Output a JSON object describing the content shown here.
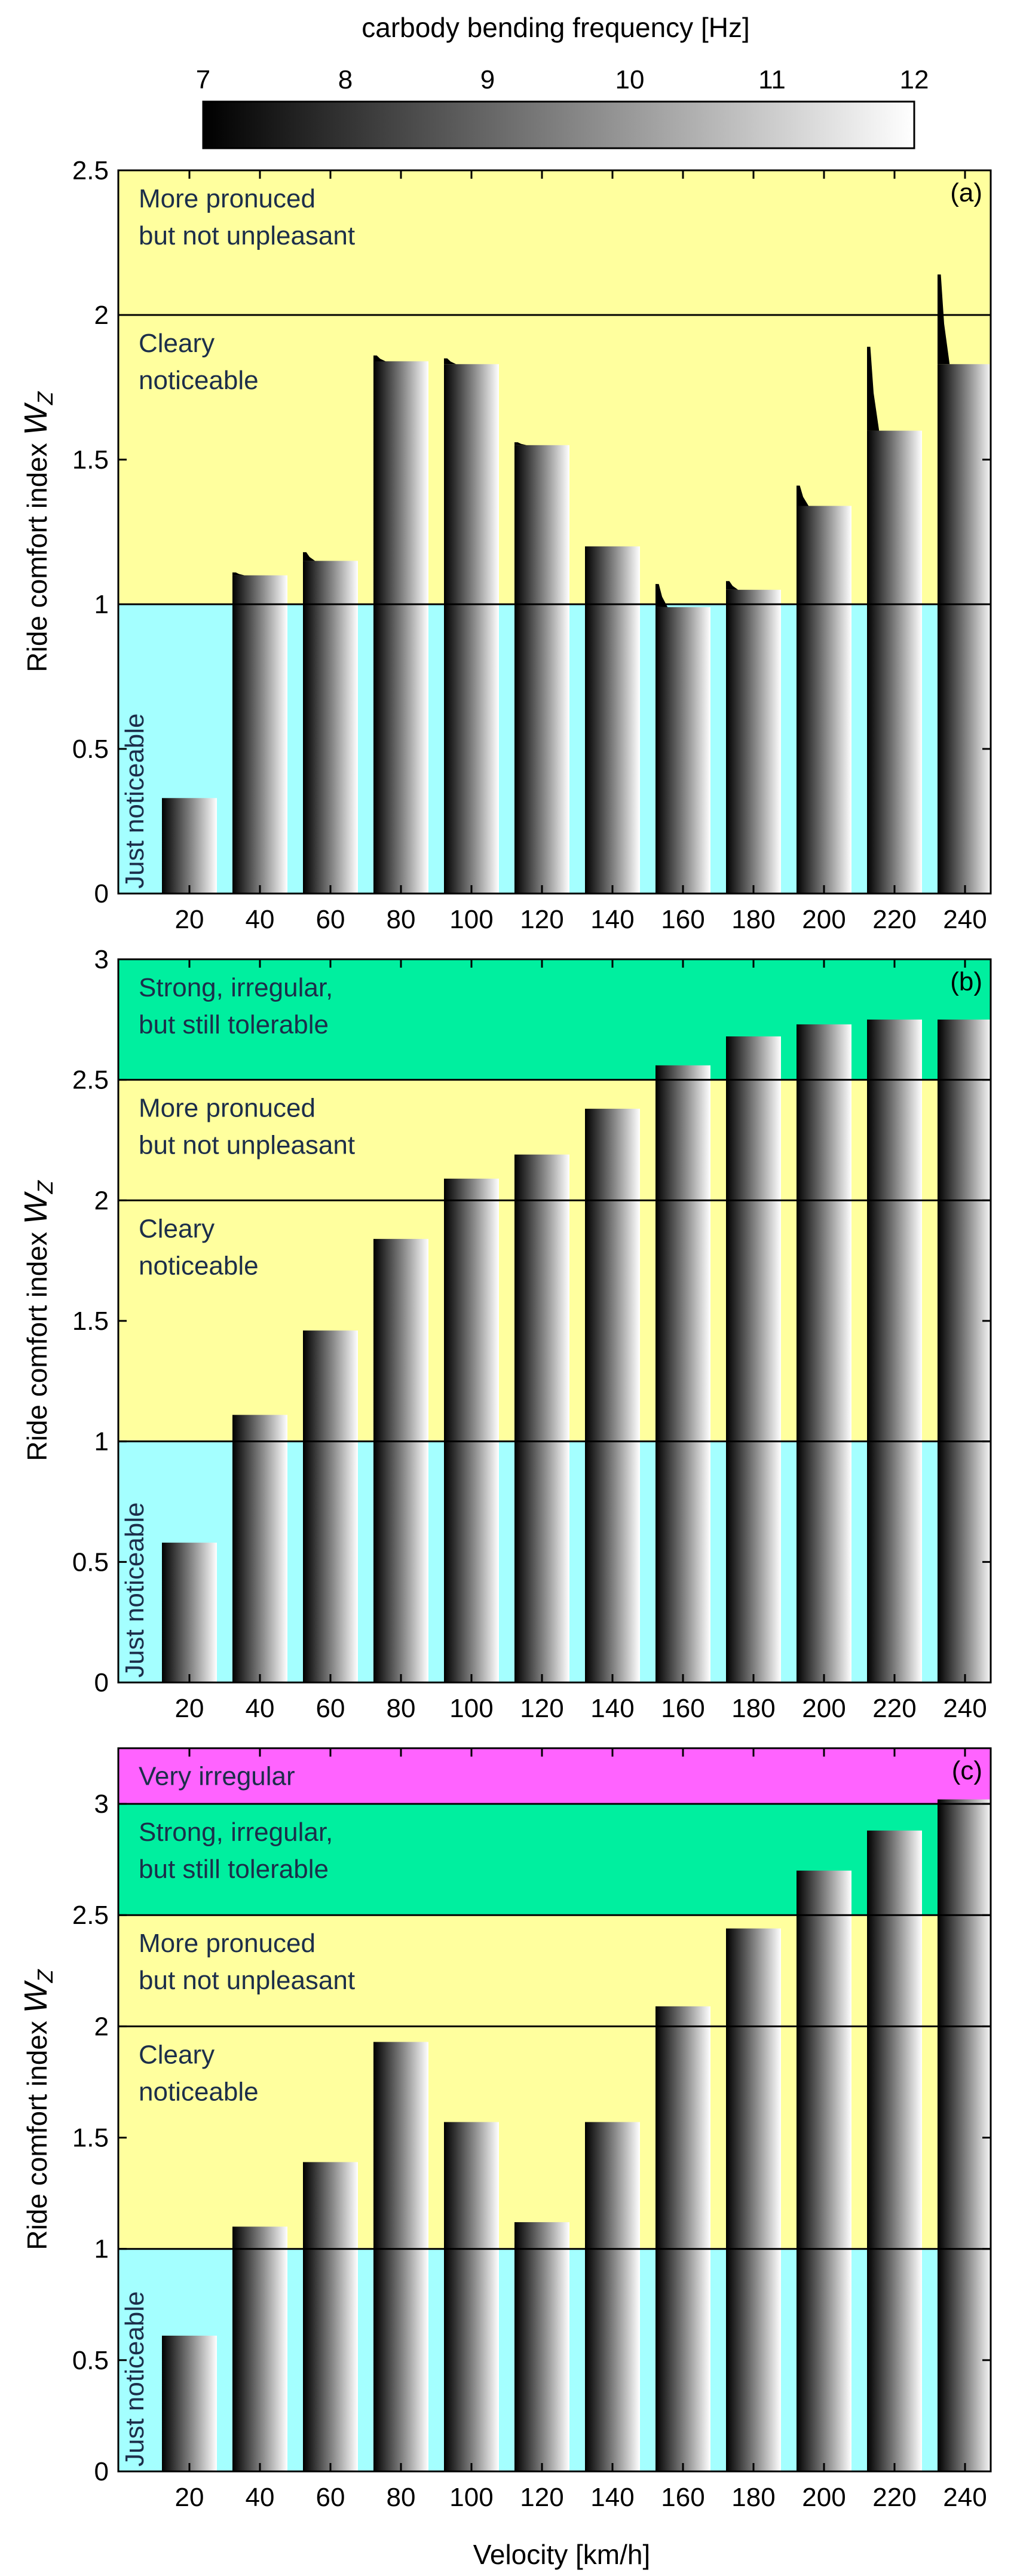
{
  "colorbar": {
    "title": "carbody bending frequency [Hz]",
    "ticks": [
      7,
      8,
      9,
      10,
      11,
      12
    ],
    "range": [
      7,
      12
    ],
    "color_low": "#000000",
    "color_high": "#ffffff"
  },
  "xlabel": "Velocity [km/h]",
  "ylabel_text": "Ride comfort index ",
  "ylabel_symbol": "W",
  "ylabel_subscript": "Z",
  "band_colors": {
    "just_noticeable": "#a4ffff",
    "clearly_noticeable": "#ffff9e",
    "more_pronounced": "#ffff9e",
    "strong": "#00ef9f",
    "very_irregular": "#ff63ff"
  },
  "chart_data": [
    {
      "type": "bar",
      "panel": "(a)",
      "categories": [
        "20",
        "40",
        "60",
        "80",
        "100",
        "120",
        "140",
        "160",
        "180",
        "200",
        "220",
        "240"
      ],
      "values": [
        0.33,
        1.1,
        1.15,
        1.84,
        1.83,
        1.55,
        1.2,
        0.99,
        1.05,
        1.34,
        1.6,
        1.83
      ],
      "peaks": [
        0.33,
        1.11,
        1.18,
        1.86,
        1.85,
        1.56,
        1.2,
        1.07,
        1.08,
        1.41,
        1.89,
        2.14
      ],
      "ylim": [
        0,
        2.5
      ],
      "yticks": [
        0,
        0.5,
        1,
        1.5,
        2,
        2.5
      ],
      "bands": [
        {
          "from": 0,
          "to": 1,
          "color_key": "just_noticeable",
          "label": [
            "Just noticeable"
          ],
          "vertical": true
        },
        {
          "from": 1,
          "to": 2,
          "color_key": "clearly_noticeable",
          "label": [
            "Cleary",
            "noticeable"
          ]
        },
        {
          "from": 2,
          "to": 2.5,
          "color_key": "more_pronounced",
          "label": [
            "More pronuced",
            "but not unpleasant"
          ]
        }
      ]
    },
    {
      "type": "bar",
      "panel": "(b)",
      "categories": [
        "20",
        "40",
        "60",
        "80",
        "100",
        "120",
        "140",
        "160",
        "180",
        "200",
        "220",
        "240"
      ],
      "values": [
        0.58,
        1.11,
        1.46,
        1.84,
        2.09,
        2.19,
        2.38,
        2.56,
        2.68,
        2.73,
        2.75,
        2.75
      ],
      "ylim": [
        0,
        3
      ],
      "yticks": [
        0,
        0.5,
        1,
        1.5,
        2,
        2.5,
        3
      ],
      "bands": [
        {
          "from": 0,
          "to": 1,
          "color_key": "just_noticeable",
          "label": [
            "Just noticeable"
          ],
          "vertical": true
        },
        {
          "from": 1,
          "to": 2,
          "color_key": "clearly_noticeable",
          "label": [
            "Cleary",
            "noticeable"
          ]
        },
        {
          "from": 2,
          "to": 2.5,
          "color_key": "more_pronounced",
          "label": [
            "More pronuced",
            "but not unpleasant"
          ]
        },
        {
          "from": 2.5,
          "to": 3,
          "color_key": "strong",
          "label": [
            "Strong, irregular,",
            "but still tolerable"
          ]
        }
      ]
    },
    {
      "type": "bar",
      "panel": "(c)",
      "categories": [
        "20",
        "40",
        "60",
        "80",
        "100",
        "120",
        "140",
        "160",
        "180",
        "200",
        "220",
        "240"
      ],
      "values": [
        0.61,
        1.1,
        1.39,
        1.93,
        1.57,
        1.12,
        1.57,
        2.09,
        2.44,
        2.7,
        2.88,
        3.02
      ],
      "ylim": [
        0,
        3.25
      ],
      "yticks": [
        0,
        0.5,
        1,
        1.5,
        2,
        2.5,
        3
      ],
      "bands": [
        {
          "from": 0,
          "to": 1,
          "color_key": "just_noticeable",
          "label": [
            "Just noticeable"
          ],
          "vertical": true
        },
        {
          "from": 1,
          "to": 2,
          "color_key": "clearly_noticeable",
          "label": [
            "Cleary",
            "noticeable"
          ]
        },
        {
          "from": 2,
          "to": 2.5,
          "color_key": "more_pronounced",
          "label": [
            "More pronuced",
            "but not unpleasant"
          ]
        },
        {
          "from": 2.5,
          "to": 3,
          "color_key": "strong",
          "label": [
            "Strong, irregular,",
            "but still tolerable"
          ]
        },
        {
          "from": 3,
          "to": 3.25,
          "color_key": "very_irregular",
          "label": [
            "Very irregular"
          ]
        }
      ]
    }
  ]
}
